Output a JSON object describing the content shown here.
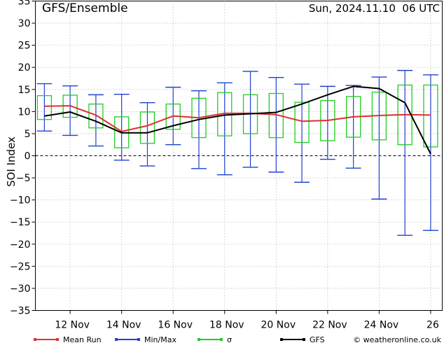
{
  "chart_data": {
    "type": "line",
    "title": "GFS/Ensemble",
    "date_text": "Sun, 2024.11.10  06 UTC",
    "ylabel": "SOI Index",
    "ylim": [
      -35,
      35
    ],
    "yticks": [
      35,
      30,
      25,
      20,
      15,
      10,
      5,
      0,
      -5,
      -10,
      -15,
      -20,
      -25,
      -30,
      -35
    ],
    "ytick_labels": [
      "35",
      "30",
      "25",
      "20",
      "15",
      "10",
      "5",
      "0",
      "−5",
      "−10",
      "−15",
      "−20",
      "−25",
      "−30",
      "−35"
    ],
    "xlim": [
      10.65,
      26.45
    ],
    "xticks": [
      12,
      14,
      16,
      18,
      20,
      22,
      24,
      26
    ],
    "xtick_labels": [
      "12 Nov",
      "14 Nov",
      "16 Nov",
      "18 Nov",
      "20 Nov",
      "22 Nov",
      "24 Nov",
      "26"
    ],
    "grid": true,
    "legend": [
      {
        "label": "Mean Run",
        "color": "#e03030"
      },
      {
        "label": "Min/Max",
        "color": "#2040d0"
      },
      {
        "label": "σ",
        "color": "#22cc22"
      },
      {
        "label": "GFS",
        "color": "#000000"
      }
    ],
    "credit": "© weatheronline.co.uk",
    "x": [
      11,
      12,
      13,
      14,
      15,
      16,
      17,
      18,
      19,
      20,
      21,
      22,
      23,
      24,
      25,
      26
    ],
    "series": [
      {
        "name": "Mean Run",
        "color": "#e03030",
        "values": [
          11.2,
          11.3,
          9.2,
          5.5,
          6.8,
          9.0,
          8.6,
          9.6,
          9.6,
          9.3,
          7.8,
          8.0,
          8.8,
          9.1,
          9.3,
          9.2
        ]
      },
      {
        "name": "GFS",
        "color": "#000000",
        "values": [
          9.0,
          9.9,
          7.8,
          5.2,
          5.2,
          6.8,
          8.2,
          9.2,
          9.5,
          9.8,
          11.7,
          13.8,
          15.7,
          15.2,
          12.0,
          0.4
        ]
      }
    ],
    "minmax": {
      "min": [
        5.6,
        4.6,
        2.2,
        -1.0,
        -2.3,
        2.5,
        -2.9,
        -4.3,
        -2.6,
        -3.7,
        -6.0,
        -0.8,
        -2.8,
        -9.8,
        -18.0,
        -16.9
      ],
      "max": [
        16.3,
        15.8,
        13.8,
        13.9,
        12.0,
        15.5,
        14.7,
        16.5,
        19.1,
        17.7,
        16.2,
        15.7,
        15.9,
        17.8,
        19.3,
        18.3
      ]
    },
    "sigma": {
      "low": [
        8.2,
        8.7,
        6.3,
        1.8,
        2.8,
        6.0,
        4.1,
        4.5,
        5.0,
        4.1,
        3.0,
        3.4,
        4.2,
        3.6,
        2.5,
        2.0
      ],
      "high": [
        13.6,
        13.7,
        11.7,
        8.8,
        9.9,
        11.7,
        13.0,
        14.3,
        13.8,
        14.1,
        12.1,
        12.5,
        13.4,
        14.4,
        16.0,
        16.0
      ]
    }
  }
}
